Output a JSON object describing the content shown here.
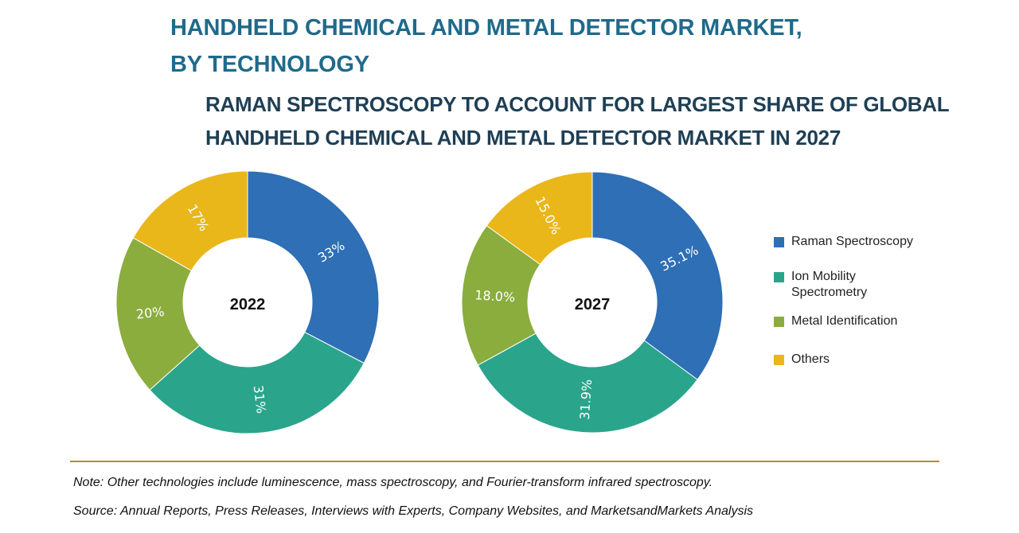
{
  "title": {
    "line1": "HANDHELD CHEMICAL AND METAL DETECTOR MARKET,",
    "line2": "BY TECHNOLOGY"
  },
  "subtitle": {
    "line1": "RAMAN SPECTROSCOPY TO ACCOUNT FOR LARGEST SHARE OF GLOBAL",
    "line2": "HANDHELD CHEMICAL AND METAL DETECTOR MARKET IN 2027"
  },
  "legend": {
    "items": [
      {
        "label": "Raman Spectroscopy"
      },
      {
        "label": "Ion Mobility Spectrometry"
      },
      {
        "label": "Metal Identification"
      },
      {
        "label": "Others"
      }
    ]
  },
  "colors": {
    "raman": "#2e6fb5",
    "ion": "#2aa58c",
    "metal": "#8aad3e",
    "others": "#e9b71a"
  },
  "chart_data": [
    {
      "type": "pie",
      "variant": "donut",
      "center_label": "2022",
      "categories": [
        "Raman Spectroscopy",
        "Ion Mobility Spectrometry",
        "Metal Identification",
        "Others"
      ],
      "values": [
        33,
        31,
        20,
        17
      ],
      "labels": [
        "33%",
        "31%",
        "20%",
        "17%"
      ]
    },
    {
      "type": "pie",
      "variant": "donut",
      "center_label": "2027",
      "categories": [
        "Raman Spectroscopy",
        "Ion Mobility Spectrometry",
        "Metal Identification",
        "Others"
      ],
      "values": [
        35.1,
        31.9,
        18.0,
        15.0
      ],
      "labels": [
        "35.1%",
        "31.9%",
        "18.0%",
        "15.0%"
      ]
    }
  ],
  "footer": {
    "note": "Note: Other technologies include luminescence, mass spectroscopy, and Fourier-transform infrared spectroscopy.",
    "source": "Source: Annual Reports, Press Releases, Interviews with Experts, Company Websites, and MarketsandMarkets Analysis"
  }
}
